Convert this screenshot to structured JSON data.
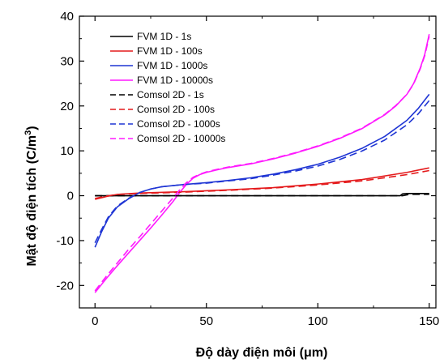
{
  "chart_data": {
    "type": "line",
    "xlabel": "Độ dày điện môi (μm)",
    "ylabel_main": "Mật độ điện tích (C/m",
    "ylabel_sup": "3",
    "ylabel_close": ")",
    "xlim": [
      -7,
      153
    ],
    "ylim": [
      -25,
      40
    ],
    "xticks": [
      0,
      50,
      100,
      150
    ],
    "yticks": [
      -20,
      -10,
      0,
      10,
      20,
      30,
      40
    ],
    "legend_position": "top-left",
    "grid": false,
    "series": [
      {
        "name": "FVM 1D - 1s",
        "color": "#000000",
        "dash": "solid",
        "x": [
          0,
          10,
          30,
          60,
          100,
          130,
          137,
          138,
          140,
          145,
          150
        ],
        "y": [
          0,
          0,
          0,
          0,
          0,
          0,
          0,
          0.4,
          0.5,
          0.5,
          0.5
        ]
      },
      {
        "name": "FVM 1D - 100s",
        "color": "#e41a1c",
        "dash": "solid",
        "x": [
          0,
          5,
          10,
          20,
          40,
          60,
          80,
          100,
          120,
          140,
          150
        ],
        "y": [
          -0.8,
          -0.2,
          0.3,
          0.6,
          0.9,
          1.3,
          1.8,
          2.6,
          3.6,
          5.2,
          6.2
        ]
      },
      {
        "name": "FVM 1D - 1000s",
        "color": "#1f35d4",
        "dash": "solid",
        "x": [
          0,
          3,
          6,
          10,
          15,
          20,
          25,
          30,
          40,
          50,
          60,
          70,
          80,
          90,
          100,
          110,
          120,
          130,
          140,
          145,
          150
        ],
        "y": [
          -11.5,
          -8,
          -5,
          -2.5,
          -0.7,
          0.7,
          1.5,
          2.0,
          2.5,
          2.9,
          3.4,
          4.0,
          4.8,
          5.8,
          7.0,
          8.6,
          10.6,
          13.2,
          16.8,
          19.4,
          22.6
        ]
      },
      {
        "name": "FVM 1D - 10000s",
        "color": "#ff1aff",
        "dash": "solid",
        "x": [
          0,
          5,
          10,
          15,
          20,
          25,
          30,
          35,
          38,
          41,
          44,
          47,
          50,
          55,
          60,
          70,
          80,
          90,
          100,
          110,
          120,
          130,
          135,
          140,
          143,
          146,
          148,
          150
        ],
        "y": [
          -21.6,
          -18.5,
          -15.6,
          -12.8,
          -10,
          -7.2,
          -4.3,
          -1.3,
          0.7,
          2.5,
          3.9,
          4.7,
          5.2,
          5.8,
          6.3,
          7.1,
          8.2,
          9.5,
          11.0,
          12.8,
          15.0,
          18.0,
          20.0,
          22.6,
          25.0,
          28.5,
          31.5,
          36.0
        ]
      },
      {
        "name": "Comsol 2D - 1s",
        "color": "#000000",
        "dash": "dashed",
        "x": [
          0,
          10,
          30,
          60,
          100,
          130,
          138,
          140,
          142,
          145,
          150
        ],
        "y": [
          0,
          0,
          0,
          0,
          0,
          0,
          0,
          0.2,
          0.3,
          0.3,
          0.3
        ]
      },
      {
        "name": "Comsol 2D - 100s",
        "color": "#e41a1c",
        "dash": "dashed",
        "x": [
          0,
          5,
          10,
          20,
          40,
          60,
          80,
          100,
          120,
          140,
          150
        ],
        "y": [
          -0.6,
          -0.1,
          0.3,
          0.5,
          0.8,
          1.2,
          1.7,
          2.4,
          3.3,
          4.7,
          5.6
        ]
      },
      {
        "name": "Comsol 2D - 1000s",
        "color": "#1f35d4",
        "dash": "dashed",
        "x": [
          0,
          3,
          6,
          10,
          15,
          20,
          25,
          30,
          40,
          50,
          60,
          70,
          80,
          90,
          100,
          110,
          120,
          130,
          140,
          145,
          150
        ],
        "y": [
          -10.5,
          -7.5,
          -4.7,
          -2.3,
          -0.6,
          0.7,
          1.5,
          2.0,
          2.5,
          2.8,
          3.3,
          3.8,
          4.6,
          5.5,
          6.6,
          8.1,
          10.0,
          12.4,
          15.8,
          18.2,
          21.2
        ]
      },
      {
        "name": "Comsol 2D - 10000s",
        "color": "#ff1aff",
        "dash": "dashed",
        "x": [
          0,
          5,
          10,
          15,
          20,
          25,
          30,
          35,
          38,
          41,
          44,
          47,
          50,
          55,
          60,
          70,
          80,
          90,
          100,
          110,
          120,
          130,
          135,
          140,
          143,
          146,
          148,
          150
        ],
        "y": [
          -21.2,
          -18,
          -15,
          -12,
          -9.2,
          -6.3,
          -3.4,
          -0.5,
          1.3,
          2.9,
          4.1,
          4.8,
          5.3,
          5.9,
          6.4,
          7.2,
          8.3,
          9.6,
          11.1,
          12.9,
          15.1,
          18.1,
          20.1,
          22.6,
          24.9,
          28.3,
          31.2,
          35.5
        ]
      }
    ]
  }
}
